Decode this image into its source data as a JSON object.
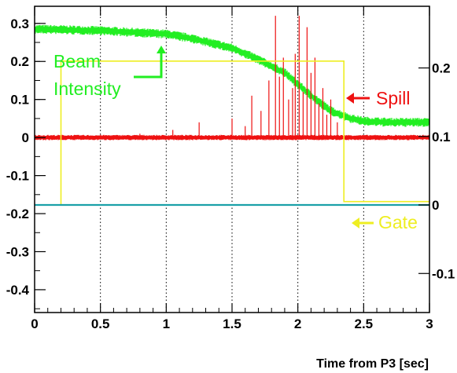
{
  "chart_data": {
    "type": "line",
    "xlabel": "Time from P3 [sec]",
    "xlim": [
      0,
      3
    ],
    "x_ticks": [
      "0",
      "0.5",
      "1",
      "1.5",
      "2",
      "2.5",
      "3"
    ],
    "y_left": {
      "lim": [
        -0.46,
        0.345
      ],
      "ticks": [
        "0.3",
        "0.2",
        "0.1",
        "0",
        "-0.1",
        "-0.2",
        "-0.3",
        "-0.4"
      ]
    },
    "y_right": {
      "lim": [
        -0.157,
        0.29
      ],
      "ticks": [
        "0.2",
        "0.1",
        "0",
        "-0.1"
      ]
    },
    "grid": "vertical-dotted",
    "series": [
      {
        "name": "Beam Intensity",
        "color": "#22ee22",
        "x": [
          0,
          0.5,
          1.0,
          1.2,
          1.5,
          1.7,
          1.9,
          2.1,
          2.25,
          2.4,
          2.5,
          2.7,
          3.0
        ],
        "y": [
          0.285,
          0.281,
          0.272,
          0.26,
          0.235,
          0.205,
          0.17,
          0.11,
          0.07,
          0.05,
          0.043,
          0.04,
          0.04
        ]
      },
      {
        "name": "Spill",
        "color": "#ee1111",
        "baseline": 0,
        "spikes": [
          [
            0.8,
            0.01
          ],
          [
            1.05,
            0.02
          ],
          [
            1.25,
            0.04
          ],
          [
            1.5,
            0.05
          ],
          [
            1.6,
            0.03
          ],
          [
            1.65,
            0.11
          ],
          [
            1.72,
            0.07
          ],
          [
            1.78,
            0.15
          ],
          [
            1.83,
            0.32
          ],
          [
            1.86,
            0.16
          ],
          [
            1.89,
            0.21
          ],
          [
            1.93,
            0.1
          ],
          [
            1.96,
            0.13
          ],
          [
            1.98,
            0.22
          ],
          [
            2.01,
            0.32
          ],
          [
            2.04,
            0.12
          ],
          [
            2.07,
            0.29
          ],
          [
            2.1,
            0.17
          ],
          [
            2.13,
            0.21
          ],
          [
            2.16,
            0.09
          ],
          [
            2.19,
            0.13
          ],
          [
            2.22,
            0.06
          ],
          [
            2.25,
            0.1
          ],
          [
            2.3,
            0.04
          ]
        ]
      },
      {
        "name": "Gate",
        "color": "#eeee22",
        "axis": "right",
        "x": [
          0,
          0.2,
          0.2,
          2.35,
          2.35,
          3.0
        ],
        "y": [
          0,
          0,
          0.21,
          0.21,
          0.005,
          0.005
        ]
      },
      {
        "name": "",
        "color": "#1aa0a8",
        "axis": "right",
        "x": [
          0,
          3.0
        ],
        "y": [
          0,
          0
        ]
      }
    ],
    "annotations": [
      {
        "text": "Beam",
        "color": "#22ee22"
      },
      {
        "text": "Intensity",
        "color": "#22ee22"
      },
      {
        "text": "Spill",
        "color": "#ee1111"
      },
      {
        "text": "Gate",
        "color": "#eeee22"
      }
    ]
  }
}
